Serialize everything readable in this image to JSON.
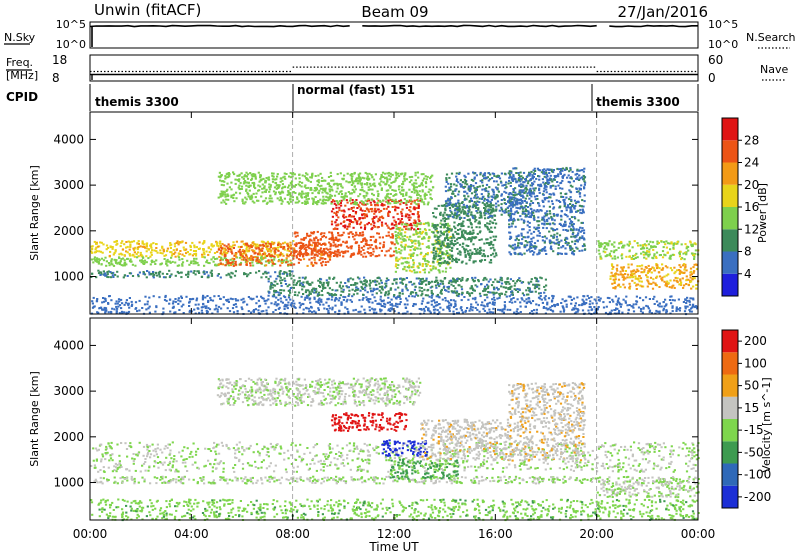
{
  "header": {
    "station": "Unwin (fitACF)",
    "beam": "Beam 09",
    "date": "27/Jan/2016"
  },
  "left_labels": {
    "nsky": "N.Sky",
    "nsky_ticks": [
      "10^5",
      "10^0"
    ],
    "freq": "Freq.",
    "freq_unit": "[MHz]",
    "freq_ticks": [
      "18",
      "8"
    ],
    "cpid": "CPID"
  },
  "right_labels": {
    "nsky_ticks": [
      "10^5",
      "10^0"
    ],
    "nsearch": "N.Search",
    "nave": "Nave",
    "nave_ticks": [
      "60",
      "0"
    ]
  },
  "cpid_segments": [
    {
      "label": "themis 3300",
      "start_hour": 0
    },
    {
      "label": "normal (fast) 151",
      "start_hour": 8
    },
    {
      "label": "themis 3300",
      "start_hour": 20
    }
  ],
  "chart_data": [
    {
      "type": "line",
      "name": "status-panels",
      "x_range_hours": [
        0,
        24
      ],
      "segment_boundaries_hours": [
        8,
        20
      ],
      "nsky_level_log10": 5,
      "nsky_data_gaps_hours": [
        [
          10.3,
          10.7
        ],
        [
          20.0,
          20.3
        ]
      ],
      "freq_mhz": 10.5,
      "nave_by_segment": [
        {
          "from": 0,
          "to": 8,
          "value": 22
        },
        {
          "from": 8,
          "to": 20,
          "value": 32
        },
        {
          "from": 20,
          "to": 24,
          "value": 22
        }
      ]
    },
    {
      "type": "heatmap",
      "name": "power",
      "ylabel": "Slant Range [km]",
      "ylim": [
        180,
        4600
      ],
      "yticks": [
        "1000",
        "2000",
        "3000",
        "4000"
      ],
      "colorbar_label": "Power [dB]",
      "colorbar_ticks": [
        "4",
        "8",
        "12",
        "16",
        "20",
        "24",
        "28"
      ],
      "colorbar_range": [
        0,
        32
      ],
      "colors": [
        "#1f1fdc",
        "#3a6fc0",
        "#3c8a5a",
        "#7ed04d",
        "#e8d41a",
        "#f39a16",
        "#ec5416",
        "#e01414"
      ],
      "regions": [
        {
          "t0": 0.0,
          "t1": 8.0,
          "r0": 1450,
          "r1": 1800,
          "val": 19
        },
        {
          "t0": 0.0,
          "t1": 8.0,
          "r0": 1250,
          "r1": 1450,
          "val": 14
        },
        {
          "t0": 0.0,
          "t1": 8.0,
          "r0": 1000,
          "r1": 1150,
          "val": 9
        },
        {
          "t0": 5.0,
          "t1": 9.5,
          "r0": 1250,
          "r1": 1750,
          "val": 25
        },
        {
          "t0": 8.0,
          "t1": 12.0,
          "r0": 1450,
          "r1": 2000,
          "val": 26
        },
        {
          "t0": 9.5,
          "t1": 13.0,
          "r0": 2050,
          "r1": 2700,
          "val": 28
        },
        {
          "t0": 12.0,
          "t1": 14.2,
          "r0": 1100,
          "r1": 2200,
          "val": 15
        },
        {
          "t0": 13.5,
          "t1": 16.0,
          "r0": 1300,
          "r1": 2600,
          "val": 10
        },
        {
          "t0": 14.0,
          "t1": 17.5,
          "r0": 2300,
          "r1": 3300,
          "val": 8
        },
        {
          "t0": 16.5,
          "t1": 19.5,
          "r0": 1500,
          "r1": 3400,
          "val": 7
        },
        {
          "t0": 5.0,
          "t1": 13.5,
          "r0": 2600,
          "r1": 3300,
          "val": 14
        },
        {
          "t0": 20.0,
          "t1": 24.0,
          "r0": 1400,
          "r1": 1800,
          "val": 15
        },
        {
          "t0": 20.5,
          "t1": 24.0,
          "r0": 750,
          "r1": 1300,
          "val": 21
        },
        {
          "t0": 0.0,
          "t1": 24.0,
          "r0": 200,
          "r1": 600,
          "val": 6
        },
        {
          "t0": 7.0,
          "t1": 18.0,
          "r0": 600,
          "r1": 1000,
          "val": 9
        }
      ]
    },
    {
      "type": "heatmap",
      "name": "velocity",
      "ylabel": "Slant Range [km]",
      "ylim": [
        180,
        4600
      ],
      "yticks": [
        "1000",
        "2000",
        "3000",
        "4000"
      ],
      "colorbar_label": "Velocity [m s^-1]",
      "colorbar_ticks": [
        "200",
        "100",
        "50",
        "15",
        "-15",
        "-50",
        "-100",
        "-200"
      ],
      "colorbar_range": [
        -250,
        250
      ],
      "colors": [
        "#1c2fd6",
        "#2f69b8",
        "#3d9b50",
        "#7ed64d",
        "#c4c4c0",
        "#f0a018",
        "#ee6a12",
        "#e01414"
      ],
      "regions": [
        {
          "t0": 0.0,
          "t1": 24.0,
          "r0": 1250,
          "r1": 1900,
          "val": 0
        },
        {
          "t0": 0.0,
          "t1": 24.0,
          "r0": 1000,
          "r1": 1150,
          "val": 0
        },
        {
          "t0": 9.5,
          "t1": 12.5,
          "r0": 2150,
          "r1": 2550,
          "val": 220
        },
        {
          "t0": 11.5,
          "t1": 13.3,
          "r0": 1600,
          "r1": 1950,
          "val": -220
        },
        {
          "t0": 11.8,
          "t1": 14.5,
          "r0": 1100,
          "r1": 1550,
          "val": -70
        },
        {
          "t0": 13.0,
          "t1": 16.5,
          "r0": 1500,
          "r1": 2400,
          "val": 40
        },
        {
          "t0": 16.5,
          "t1": 19.5,
          "r0": 1500,
          "r1": 3200,
          "val": 45
        },
        {
          "t0": 5.0,
          "t1": 13.0,
          "r0": 2700,
          "r1": 3300,
          "val": 8
        },
        {
          "t0": 20.0,
          "t1": 24.0,
          "r0": 700,
          "r1": 1050,
          "val": 0
        },
        {
          "t0": 0.0,
          "t1": 24.0,
          "r0": 200,
          "r1": 650,
          "val": -40
        }
      ]
    }
  ],
  "xaxis": {
    "label": "Time UT",
    "ticks": [
      "00:00",
      "04:00",
      "08:00",
      "12:00",
      "16:00",
      "20:00",
      "00:00"
    ]
  }
}
